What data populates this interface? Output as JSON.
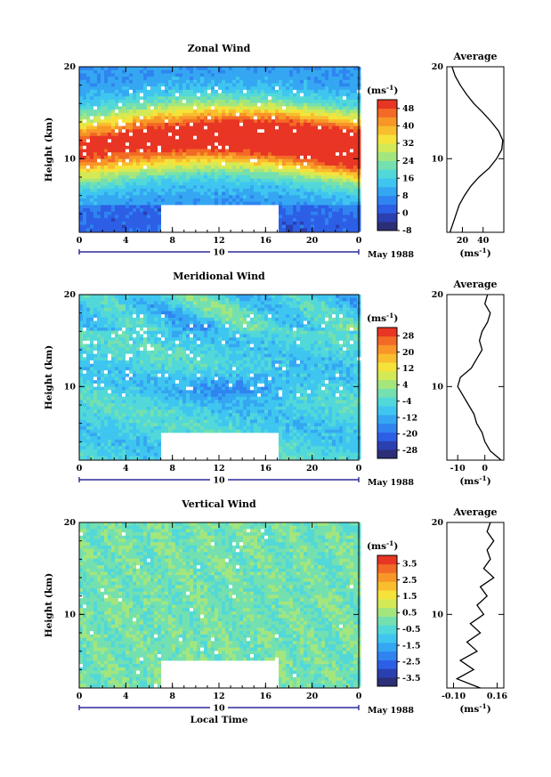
{
  "chart_data": [
    {
      "type": "heatmap",
      "title": "Zonal Wind",
      "ylabel": "Height (km)",
      "xlabel": "",
      "x_ticks": [
        "0",
        "4",
        "8",
        "12",
        "16",
        "20",
        "0"
      ],
      "xlim": [
        0,
        24
      ],
      "y_ticks": [
        "10",
        "20"
      ],
      "ylim": [
        2,
        20
      ],
      "date_label": "10",
      "month_label": "May 1988",
      "colorbar": {
        "unit": "(ms⁻¹)",
        "ticks": [
          "48",
          "40",
          "32",
          "24",
          "16",
          "8",
          "0",
          "-8"
        ],
        "range": [
          -8,
          52
        ],
        "colors": [
          "#2c2e78",
          "#2a3fb0",
          "#2c5fe6",
          "#2f84f0",
          "#35a7f2",
          "#3fc6f0",
          "#52d8d8",
          "#74e0b0",
          "#a3e67e",
          "#d3ea56",
          "#f5e33a",
          "#f9bd2e",
          "#f89628",
          "#f26a25",
          "#e83524"
        ]
      },
      "profile": {
        "title": "Average",
        "x_ticks": [
          "20",
          "40"
        ],
        "xlim": [
          5,
          60
        ],
        "xlabel": "(ms⁻¹)",
        "heights": [
          2,
          3,
          4,
          5,
          6,
          7,
          8,
          9,
          10,
          11,
          12,
          13,
          14,
          15,
          16,
          17,
          18,
          19,
          20
        ],
        "values": [
          8,
          11,
          14,
          17,
          22,
          28,
          36,
          46,
          53,
          58,
          59,
          55,
          48,
          40,
          31,
          24,
          18,
          13,
          10
        ]
      }
    },
    {
      "type": "heatmap",
      "title": "Meridional Wind",
      "ylabel": "Height (km)",
      "xlabel": "",
      "x_ticks": [
        "0",
        "4",
        "8",
        "12",
        "16",
        "20",
        "0"
      ],
      "xlim": [
        0,
        24
      ],
      "y_ticks": [
        "10",
        "20"
      ],
      "ylim": [
        2,
        20
      ],
      "date_label": "10",
      "month_label": "May 1988",
      "colorbar": {
        "unit": "(ms⁻¹)",
        "ticks": [
          "28",
          "20",
          "12",
          "4",
          "-4",
          "-12",
          "-20",
          "-28"
        ],
        "range": [
          -32,
          32
        ],
        "colors": [
          "#2c2e78",
          "#2a3fb0",
          "#2c5fe6",
          "#2f84f0",
          "#35a7f2",
          "#3fc6f0",
          "#52d8d8",
          "#74e0b0",
          "#a3e67e",
          "#d3ea56",
          "#f5e33a",
          "#f9bd2e",
          "#f89628",
          "#f26a25",
          "#e83524"
        ]
      },
      "profile": {
        "title": "Average",
        "x_ticks": [
          "-10",
          "0"
        ],
        "xlim": [
          -14,
          7
        ],
        "xlabel": "(ms⁻¹)",
        "heights": [
          2,
          3,
          4,
          5,
          6,
          7,
          8,
          9,
          10,
          11,
          12,
          13,
          14,
          15,
          16,
          17,
          18,
          19,
          20
        ],
        "values": [
          6,
          2,
          0,
          -1,
          -3,
          -4,
          -6,
          -8,
          -10,
          -9,
          -5,
          -3,
          -1,
          -2,
          -1,
          1,
          2,
          0,
          1
        ]
      }
    },
    {
      "type": "heatmap",
      "title": "Vertical Wind",
      "ylabel": "Height (km)",
      "xlabel": "Local Time",
      "x_ticks": [
        "0",
        "4",
        "8",
        "12",
        "16",
        "20",
        "0"
      ],
      "xlim": [
        0,
        24
      ],
      "y_ticks": [
        "10",
        "20"
      ],
      "ylim": [
        2,
        20
      ],
      "date_label": "10",
      "month_label": "May 1988",
      "colorbar": {
        "unit": "(ms⁻¹)",
        "ticks": [
          "3.5",
          "2.5",
          "1.5",
          "0.5",
          "-0.5",
          "-1.5",
          "-2.5",
          "-3.5"
        ],
        "range": [
          -4,
          4
        ],
        "colors": [
          "#2c2e78",
          "#2a3fb0",
          "#2c5fe6",
          "#2f84f0",
          "#35a7f2",
          "#3fc6f0",
          "#52d8d8",
          "#74e0b0",
          "#a3e67e",
          "#d3ea56",
          "#f5e33a",
          "#f9bd2e",
          "#f89628",
          "#f26a25",
          "#e83524"
        ]
      },
      "profile": {
        "title": "Average",
        "x_ticks": [
          "-0.10",
          "0.16"
        ],
        "xlim": [
          -0.14,
          0.2
        ],
        "xlabel": "(ms⁻¹)",
        "heights": [
          2,
          3,
          4,
          5,
          6,
          7,
          8,
          9,
          10,
          11,
          12,
          13,
          14,
          15,
          16,
          17,
          18,
          19,
          20
        ],
        "values": [
          0.06,
          -0.08,
          0.02,
          -0.06,
          0.04,
          -0.02,
          0.06,
          0.0,
          0.08,
          0.04,
          0.1,
          0.06,
          0.14,
          0.08,
          0.12,
          0.1,
          0.14,
          0.1,
          0.12
        ]
      }
    }
  ]
}
